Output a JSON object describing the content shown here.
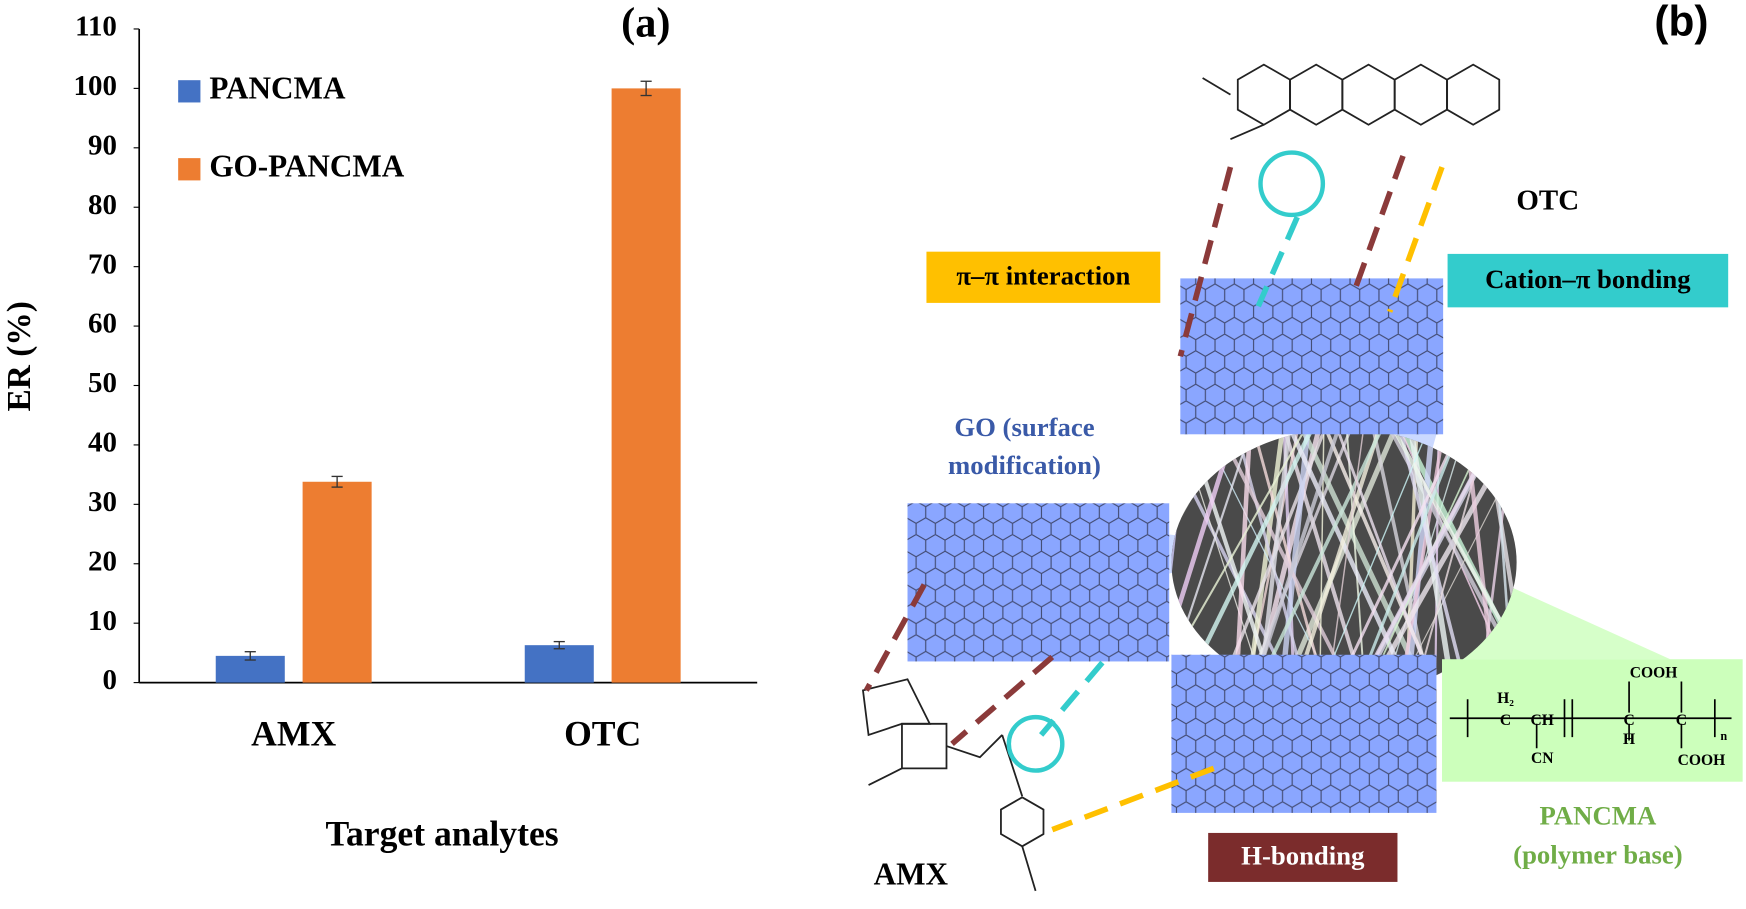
{
  "chart_data": {
    "type": "bar",
    "title": "(a)",
    "y_label": "ER (%)",
    "x_label": "Target analytes",
    "categories": [
      "AMX",
      "OTC"
    ],
    "series": [
      {
        "name": "PANCMA",
        "color": "#4472c4",
        "values": [
          4.5,
          6.3
        ],
        "errors": [
          0.7,
          0.6
        ]
      },
      {
        "name": "GO-PANCMA",
        "color": "#ed7d31",
        "values": [
          33.8,
          100
        ],
        "errors": [
          0.9,
          1.2
        ]
      }
    ],
    "ylim": [
      0,
      110
    ],
    "yticks": [
      0,
      10,
      20,
      30,
      40,
      50,
      60,
      70,
      80,
      90,
      100,
      110
    ],
    "grid": false,
    "legend": "upper left"
  },
  "diagram": {
    "title": "(b)",
    "otc": "OTC",
    "amx": "AMX",
    "pi_pi": "π–π interaction",
    "cation_pi": "Cation–π bonding",
    "h_bonding": "H-bonding",
    "go_label": [
      "GO (surface",
      "modification)"
    ],
    "pancma_label": [
      "PANCMA",
      "(polymer base)"
    ],
    "polymer": [
      "COOH",
      "H₂",
      "C",
      "CH",
      "C",
      "C",
      "H",
      "CN",
      "COOH",
      "n"
    ]
  }
}
